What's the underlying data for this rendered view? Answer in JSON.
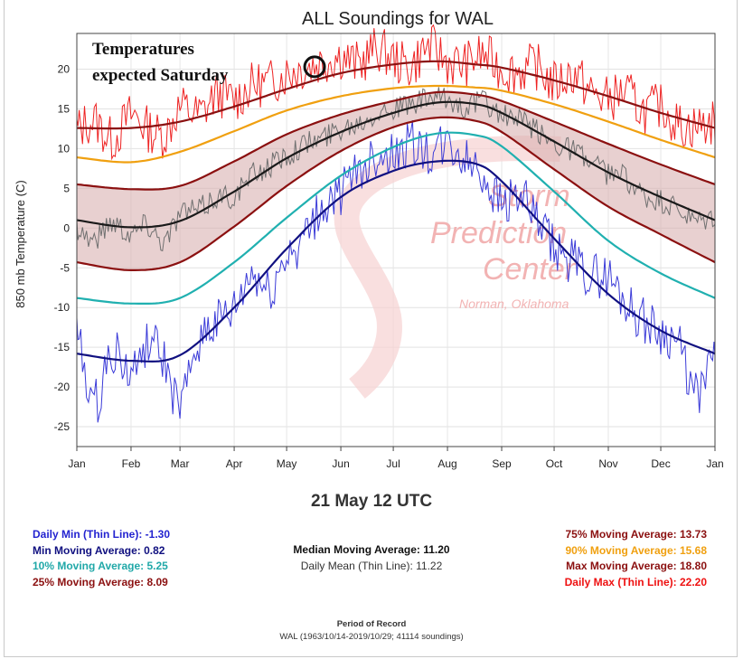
{
  "title": "ALL Soundings for WAL",
  "annotation": [
    "Temperatures",
    "expected Saturday"
  ],
  "watermark": [
    "Storm",
    "Prediction",
    "Center",
    "Norman, Oklahoma"
  ],
  "selected_date": "21 May 12 UTC",
  "colors": {
    "daily_min": "#3b3bd8",
    "min_ma": "#101080",
    "p10_ma": "#20b0b0",
    "p25_ma": "#8b1010",
    "median_ma": "#1a1a1a",
    "daily_mean": "#707070",
    "p75_ma": "#8b1010",
    "p90_ma": "#f0a010",
    "max_ma": "#8b1010",
    "daily_max": "#ee2222",
    "band_fill": "#d9b0b0"
  },
  "stats": {
    "left": [
      {
        "label": "Daily Min (Thin Line): -1.30",
        "color": "#2323d0"
      },
      {
        "label": "Min Moving Average: 0.82",
        "color": "#101080"
      },
      {
        "label": "10% Moving Average: 5.25",
        "color": "#20a8a8"
      },
      {
        "label": "25% Moving Average: 8.09",
        "color": "#8b1010"
      }
    ],
    "middle": [
      {
        "label": "Median Moving Average: 11.20",
        "color": "#111111"
      },
      {
        "label": "Daily Mean (Thin Line): 11.22",
        "color": "#333333"
      }
    ],
    "right": [
      {
        "label": "75% Moving Average: 13.73",
        "color": "#8b1010"
      },
      {
        "label": "90% Moving Average: 15.68",
        "color": "#f0a010"
      },
      {
        "label": "Max Moving Average: 18.80",
        "color": "#8b1010"
      },
      {
        "label": "Daily Max (Thin Line): 22.20",
        "color": "#ee1111"
      }
    ]
  },
  "record": {
    "title": "Period of Record",
    "detail": "WAL (1963/10/14-2019/10/29; 41114 soundings)"
  },
  "chart_data": {
    "type": "line",
    "title": "ALL Soundings for WAL",
    "xlabel": "",
    "ylabel": "850 mb Temperature (C)",
    "x_ticks": [
      "Jan",
      "Feb",
      "Mar",
      "Apr",
      "May",
      "Jun",
      "Jul",
      "Aug",
      "Sep",
      "Oct",
      "Nov",
      "Dec",
      "Jan"
    ],
    "x_tick_days": [
      0,
      31,
      59,
      90,
      120,
      151,
      181,
      212,
      243,
      273,
      304,
      334,
      365
    ],
    "y_ticks": [
      -25,
      -20,
      -15,
      -10,
      -5,
      0,
      5,
      10,
      15,
      20
    ],
    "ylim": [
      -27.5,
      24.5
    ],
    "xlim": [
      0,
      365
    ],
    "grid": true,
    "highlight": {
      "day": 136,
      "y": 20.3
    },
    "smooth_series": [
      {
        "name": "Max Moving Average",
        "role": "max_ma",
        "x": [
          0,
          31,
          59,
          90,
          120,
          151,
          181,
          206,
          228,
          243,
          273,
          304,
          334,
          365
        ],
        "values": [
          12.6,
          12.6,
          13.4,
          15.3,
          17.5,
          19.5,
          20.6,
          21.0,
          20.6,
          20.2,
          18.6,
          16.6,
          14.5,
          12.6
        ]
      },
      {
        "name": "90% Moving Average",
        "role": "p90_ma",
        "x": [
          0,
          31,
          59,
          90,
          120,
          151,
          181,
          206,
          228,
          243,
          273,
          304,
          334,
          365
        ],
        "values": [
          8.9,
          8.3,
          9.6,
          12.2,
          14.8,
          16.6,
          17.6,
          17.9,
          17.7,
          17.3,
          15.6,
          13.4,
          11.1,
          8.9
        ]
      },
      {
        "name": "75% Moving Average",
        "role": "p75_ma",
        "x": [
          0,
          31,
          59,
          90,
          120,
          151,
          181,
          206,
          228,
          243,
          273,
          304,
          334,
          365
        ],
        "values": [
          5.5,
          4.9,
          5.3,
          8.4,
          11.8,
          14.3,
          16.0,
          17.1,
          16.8,
          16.0,
          13.4,
          10.6,
          8.0,
          5.5
        ]
      },
      {
        "name": "Median Moving Average",
        "role": "median_ma",
        "x": [
          0,
          31,
          59,
          90,
          120,
          151,
          181,
          206,
          228,
          243,
          273,
          304,
          334,
          365
        ],
        "values": [
          1.0,
          0.1,
          0.9,
          4.6,
          8.8,
          12.1,
          14.5,
          15.8,
          15.6,
          14.5,
          10.9,
          7.0,
          3.9,
          1.0
        ]
      },
      {
        "name": "25% Moving Average",
        "role": "p25_ma",
        "x": [
          0,
          31,
          59,
          90,
          120,
          151,
          181,
          206,
          228,
          243,
          273,
          304,
          334,
          365
        ],
        "values": [
          -4.3,
          -5.3,
          -4.3,
          0.2,
          5.3,
          9.7,
          12.7,
          13.9,
          13.5,
          12.1,
          7.4,
          2.7,
          -0.8,
          -4.3
        ]
      },
      {
        "name": "10% Moving Average",
        "role": "p10_ma",
        "x": [
          0,
          31,
          59,
          90,
          120,
          151,
          181,
          206,
          228,
          243,
          273,
          304,
          334,
          365
        ],
        "values": [
          -8.8,
          -9.5,
          -8.8,
          -4.3,
          1.3,
          6.6,
          10.2,
          11.9,
          11.7,
          10.3,
          4.6,
          -1.6,
          -5.7,
          -8.8
        ]
      },
      {
        "name": "Min Moving Average",
        "role": "min_ma",
        "x": [
          0,
          31,
          59,
          90,
          120,
          151,
          181,
          206,
          228,
          243,
          273,
          304,
          334,
          365
        ],
        "values": [
          -15.8,
          -16.7,
          -16.0,
          -10.0,
          -2.6,
          3.9,
          7.2,
          8.4,
          8.1,
          5.9,
          -1.3,
          -8.3,
          -12.9,
          -15.8
        ]
      }
    ],
    "daily_series": [
      {
        "name": "Daily Max (Thin Line)",
        "role": "daily_max",
        "x": [
          0,
          10,
          20,
          31,
          40,
          50,
          59,
          70,
          80,
          90,
          100,
          110,
          120,
          130,
          141,
          151,
          161,
          171,
          181,
          191,
          201,
          212,
          222,
          232,
          243,
          253,
          263,
          273,
          284,
          294,
          304,
          314,
          324,
          334,
          344,
          354,
          365
        ],
        "values": [
          12.3,
          13.5,
          11.2,
          14.2,
          12.6,
          11.8,
          15.1,
          14.3,
          16.8,
          16.2,
          17.9,
          18.3,
          19.5,
          20.2,
          21.0,
          21.6,
          20.7,
          22.5,
          21.3,
          20.4,
          22.8,
          21.0,
          20.6,
          21.7,
          20.1,
          19.8,
          20.3,
          18.2,
          19.4,
          17.1,
          16.3,
          17.0,
          14.8,
          15.3,
          13.1,
          12.8,
          13.4
        ]
      },
      {
        "name": "Daily Mean (Thin Line)",
        "role": "daily_mean",
        "x": [
          0,
          10,
          20,
          31,
          40,
          50,
          59,
          70,
          80,
          90,
          100,
          110,
          120,
          130,
          141,
          151,
          161,
          171,
          181,
          191,
          201,
          212,
          222,
          232,
          243,
          253,
          263,
          273,
          284,
          294,
          304,
          314,
          324,
          334,
          344,
          354,
          365
        ],
        "values": [
          0.2,
          -1.4,
          0.8,
          -0.6,
          0.5,
          -1.5,
          1.8,
          2.3,
          3.9,
          4.1,
          6.5,
          7.8,
          9.2,
          10.5,
          11.4,
          12.6,
          13.4,
          14.6,
          15.1,
          15.4,
          16.2,
          16.0,
          15.3,
          15.9,
          14.2,
          13.5,
          12.2,
          10.8,
          9.9,
          8.1,
          6.9,
          6.3,
          3.9,
          3.2,
          2.1,
          0.6,
          1.3
        ]
      },
      {
        "name": "Daily Min (Thin Line)",
        "role": "daily_min",
        "x": [
          0,
          10,
          20,
          31,
          40,
          50,
          59,
          70,
          80,
          90,
          100,
          110,
          120,
          130,
          141,
          151,
          161,
          171,
          181,
          191,
          201,
          212,
          222,
          232,
          243,
          253,
          263,
          273,
          284,
          294,
          304,
          314,
          324,
          334,
          344,
          354,
          365
        ],
        "values": [
          -13.0,
          -22.0,
          -15.5,
          -18.5,
          -14.5,
          -17.0,
          -22.5,
          -14.0,
          -12.0,
          -10.5,
          -6.0,
          -8.0,
          -3.5,
          -1.3,
          2.5,
          4.5,
          6.8,
          9.5,
          8.9,
          10.6,
          9.2,
          10.2,
          8.6,
          7.0,
          3.4,
          4.2,
          0.8,
          -2.5,
          -4.2,
          -5.8,
          -6.1,
          -9.2,
          -11.5,
          -13.0,
          -14.6,
          -21.0,
          -15.5
        ]
      }
    ]
  }
}
